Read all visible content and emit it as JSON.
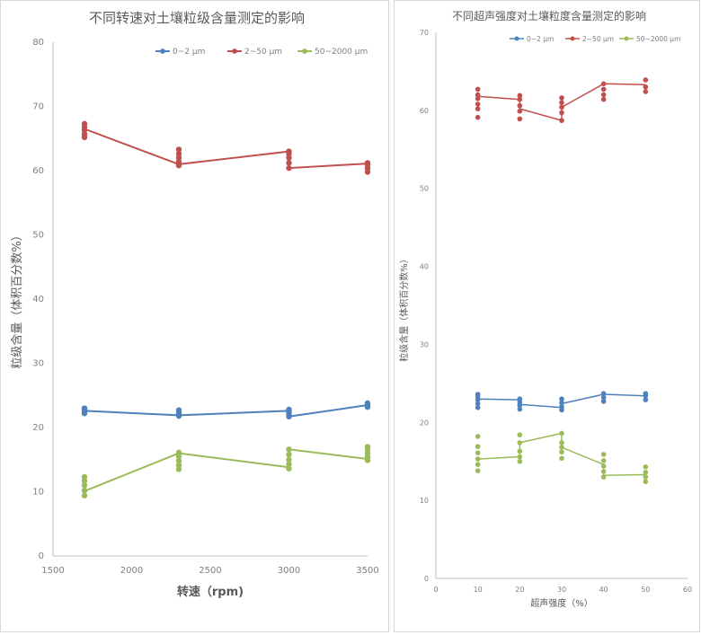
{
  "chart_data": [
    {
      "type": "line",
      "title": "不同转速对土壤粒级含量测定的影响",
      "xlabel": "转速（rpm)",
      "ylabel": "粒级含量（体积百分数%）",
      "xlim": [
        1500,
        3500
      ],
      "ylim": [
        0,
        80
      ],
      "xticks": [
        "1500",
        "2000",
        "2500",
        "3000",
        "3500"
      ],
      "yticks": [
        "0",
        "10",
        "20",
        "30",
        "40",
        "50",
        "60",
        "70",
        "80"
      ],
      "grid": false,
      "legend_position": "top-right",
      "series": [
        {
          "name": "0~2 μm",
          "color": "#4f81bd",
          "markers": [
            {
              "x": 1700,
              "y": [
                22.2,
                22.5,
                22.8,
                23.0
              ]
            },
            {
              "x": 2300,
              "y": [
                21.8,
                22.1,
                22.4,
                22.7
              ]
            },
            {
              "x": 3000,
              "y": [
                21.7,
                22.0,
                22.4,
                22.8
              ]
            },
            {
              "x": 3500,
              "y": [
                23.2,
                23.5,
                23.8
              ]
            }
          ],
          "line": [
            [
              1700,
              22.6
            ],
            [
              2300,
              21.9
            ],
            [
              3000,
              22.6
            ],
            [
              3000,
              21.7
            ],
            [
              3500,
              23.5
            ]
          ]
        },
        {
          "name": "2~50 μm",
          "color": "#c0504d",
          "markers": [
            {
              "x": 1700,
              "y": [
                65.2,
                65.7,
                66.3,
                66.8,
                67.3
              ]
            },
            {
              "x": 2300,
              "y": [
                60.8,
                61.4,
                62.0,
                62.6,
                63.3
              ]
            },
            {
              "x": 3000,
              "y": [
                60.4,
                61.2,
                62.0,
                62.6,
                63.0
              ]
            },
            {
              "x": 3500,
              "y": [
                59.8,
                60.4,
                60.9,
                61.2
              ]
            }
          ],
          "line": [
            [
              1700,
              66.5
            ],
            [
              2300,
              61.0
            ],
            [
              3000,
              63.0
            ],
            [
              3000,
              60.4
            ],
            [
              3500,
              61.1
            ]
          ]
        },
        {
          "name": "50~2000 μm",
          "color": "#9bbb59",
          "markers": [
            {
              "x": 1700,
              "y": [
                9.4,
                10.2,
                11.0,
                11.7,
                12.3
              ]
            },
            {
              "x": 2300,
              "y": [
                13.5,
                14.1,
                14.8,
                15.5,
                16.1
              ]
            },
            {
              "x": 3000,
              "y": [
                13.6,
                14.3,
                15.0,
                15.8,
                16.6
              ]
            },
            {
              "x": 3500,
              "y": [
                14.9,
                15.4,
                16.0,
                16.6,
                17.0
              ]
            }
          ],
          "line": [
            [
              1700,
              10.1
            ],
            [
              2300,
              16.0
            ],
            [
              3000,
              13.8
            ],
            [
              3000,
              16.6
            ],
            [
              3500,
              15.1
            ]
          ]
        }
      ]
    },
    {
      "type": "line",
      "title": "不同超声强度对土壤粒度含量测定的影响",
      "xlabel": "超声强度（%）",
      "ylabel": "粒级含量（体积百分数%）",
      "xlim": [
        0,
        60
      ],
      "ylim": [
        0,
        70
      ],
      "xticks": [
        "0",
        "10",
        "20",
        "30",
        "40",
        "50",
        "60"
      ],
      "yticks": [
        "0",
        "10",
        "20",
        "30",
        "40",
        "50",
        "60",
        "70"
      ],
      "grid": false,
      "legend_position": "top-right",
      "series": [
        {
          "name": "0~2 μm",
          "color": "#4f81bd",
          "markers": [
            {
              "x": 10,
              "y": [
                21.9,
                22.4,
                22.9,
                23.3,
                23.6
              ]
            },
            {
              "x": 20,
              "y": [
                21.7,
                22.2,
                22.6,
                23.0
              ]
            },
            {
              "x": 30,
              "y": [
                21.6,
                22.0,
                22.5,
                23.0
              ]
            },
            {
              "x": 40,
              "y": [
                22.7,
                23.2,
                23.7
              ]
            },
            {
              "x": 50,
              "y": [
                22.9,
                23.4,
                23.7
              ]
            }
          ],
          "line": [
            [
              10,
              23.0
            ],
            [
              20,
              22.9
            ],
            [
              20,
              22.3
            ],
            [
              30,
              21.9
            ],
            [
              30,
              22.4
            ],
            [
              40,
              23.6
            ],
            [
              50,
              23.4
            ]
          ]
        },
        {
          "name": "2~50 μm",
          "color": "#c0504d",
          "markers": [
            {
              "x": 10,
              "y": [
                59.1,
                60.2,
                60.8,
                61.5,
                62.0,
                62.7
              ]
            },
            {
              "x": 20,
              "y": [
                58.9,
                59.9,
                60.6,
                61.4,
                61.9
              ]
            },
            {
              "x": 30,
              "y": [
                58.7,
                59.7,
                60.4,
                61.0,
                61.6
              ]
            },
            {
              "x": 40,
              "y": [
                61.4,
                62.0,
                62.7,
                63.4
              ]
            },
            {
              "x": 50,
              "y": [
                62.4,
                63.0,
                63.9
              ]
            }
          ],
          "line": [
            [
              10,
              61.8
            ],
            [
              20,
              61.4
            ],
            [
              20,
              60.2
            ],
            [
              30,
              58.7
            ],
            [
              30,
              60.4
            ],
            [
              40,
              63.4
            ],
            [
              50,
              63.3
            ]
          ]
        },
        {
          "name": "50~2000 μm",
          "color": "#9bbb59",
          "markers": [
            {
              "x": 10,
              "y": [
                13.8,
                14.6,
                15.3,
                16.1,
                16.9,
                18.2
              ]
            },
            {
              "x": 20,
              "y": [
                15.0,
                15.6,
                16.3,
                17.4,
                18.4
              ]
            },
            {
              "x": 30,
              "y": [
                15.4,
                16.2,
                16.8,
                17.4,
                18.6
              ]
            },
            {
              "x": 40,
              "y": [
                13.0,
                13.7,
                14.4,
                15.1,
                15.9
              ]
            },
            {
              "x": 50,
              "y": [
                12.4,
                13.0,
                13.6,
                14.3
              ]
            }
          ],
          "line": [
            [
              10,
              15.3
            ],
            [
              20,
              15.6
            ],
            [
              20,
              17.4
            ],
            [
              30,
              18.6
            ],
            [
              30,
              16.8
            ],
            [
              40,
              14.6
            ],
            [
              40,
              13.2
            ],
            [
              50,
              13.3
            ]
          ]
        }
      ]
    }
  ]
}
